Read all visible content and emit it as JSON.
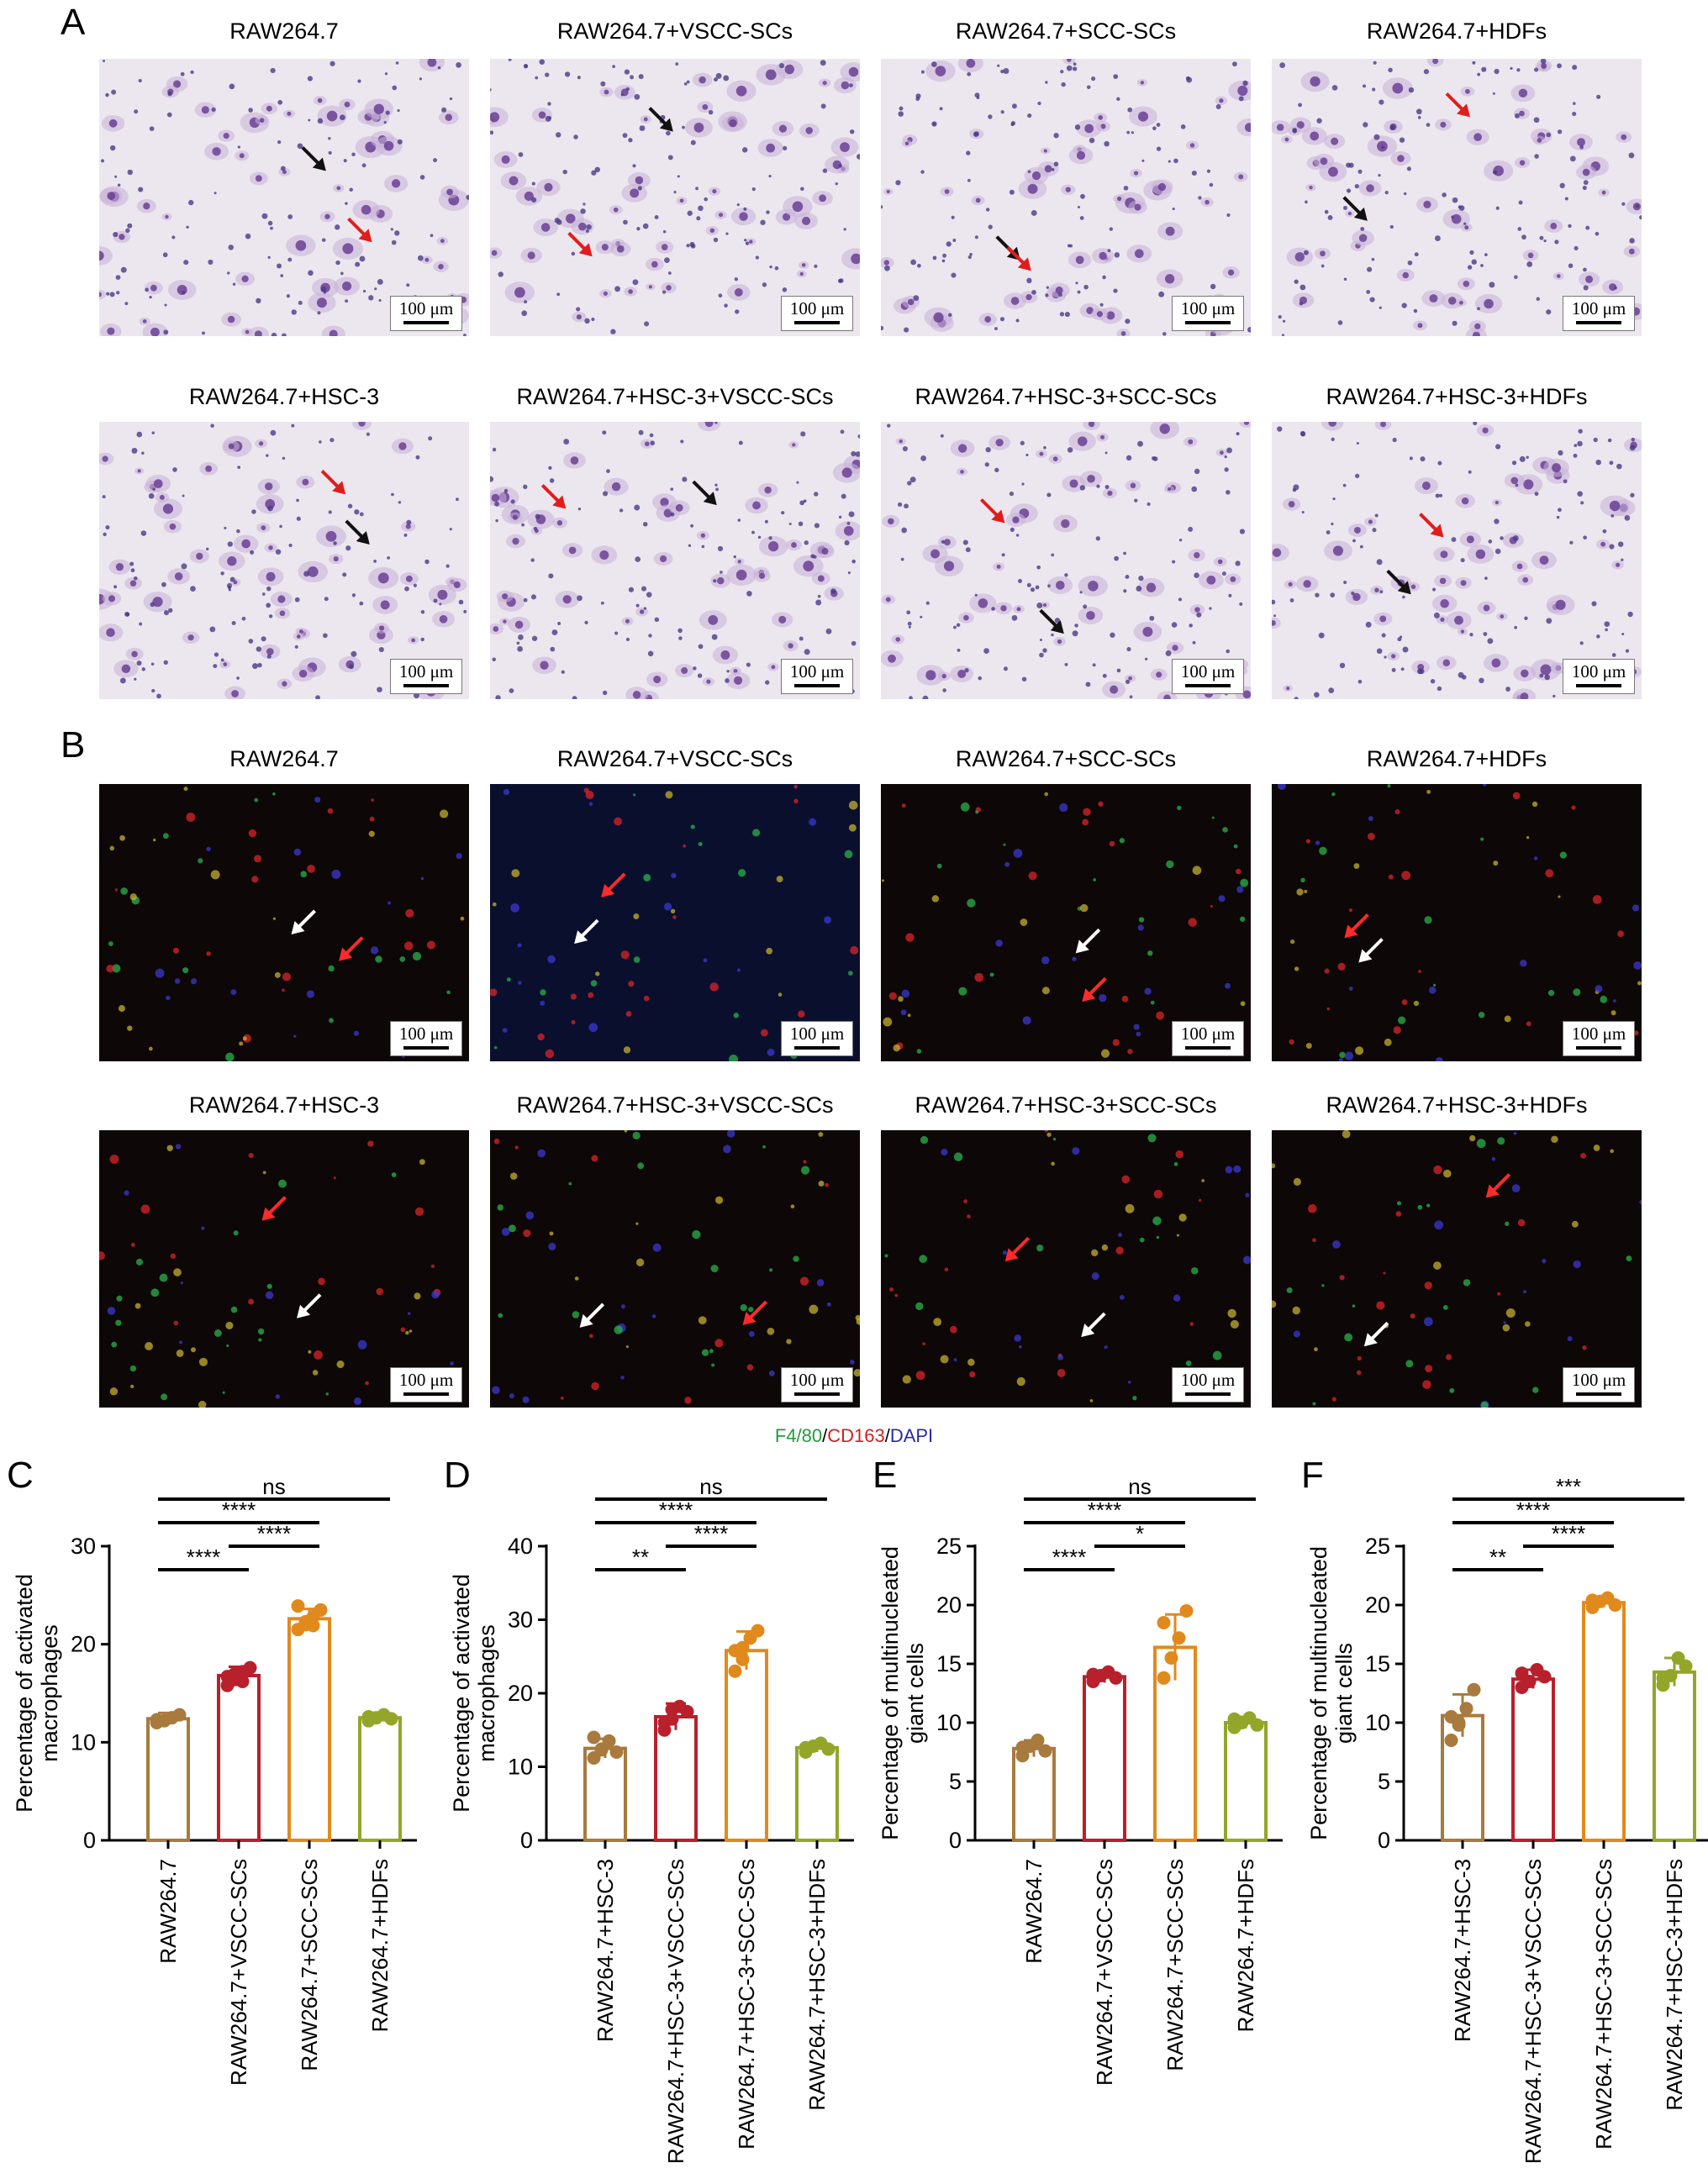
{
  "figure": {
    "panels": {
      "A": {
        "letter": "A",
        "captions": [
          "RAW264.7",
          "RAW264.7+VSCC-SCs",
          "RAW264.7+SCC-SCs",
          "RAW264.7+HDFs",
          "RAW264.7+HSC-3",
          "RAW264.7+HSC-3+VSCC-SCs",
          "RAW264.7+HSC-3+SCC-SCs",
          "RAW264.7+HSC-3+HDFs"
        ],
        "scalebar": "100 μm",
        "stain": "bright-field"
      },
      "B": {
        "letter": "B",
        "captions": [
          "RAW264.7",
          "RAW264.7+VSCC-SCs",
          "RAW264.7+SCC-SCs",
          "RAW264.7+HDFs",
          "RAW264.7+HSC-3",
          "RAW264.7+HSC-3+VSCC-SCs",
          "RAW264.7+HSC-3+SCC-SCs",
          "RAW264.7+HSC-3+HDFs"
        ],
        "scalebar": "100 μm",
        "stain": "fluorescence",
        "legend": {
          "parts": [
            {
              "text": "F4/80",
              "color": "#1e9e3c"
            },
            {
              "text": "/",
              "color": "#000000"
            },
            {
              "text": "CD163",
              "color": "#d21f1f"
            },
            {
              "text": "/",
              "color": "#000000"
            },
            {
              "text": "DAPI",
              "color": "#2a2aa8"
            }
          ]
        }
      }
    },
    "colors": {
      "brown": "#a87a3e",
      "red": "#b8202c",
      "orange": "#e08a1e",
      "olive": "#94a62a"
    }
  },
  "chart_data": [
    {
      "panel": "C",
      "type": "bar",
      "ylabel": [
        "Percentage of activated",
        "macrophages"
      ],
      "ylim": [
        0,
        30
      ],
      "yticks": [
        0,
        10,
        20,
        30
      ],
      "categories": [
        "RAW264.7",
        "RAW264.7+VSCC-SCs",
        "RAW264.7+SCC-SCs",
        "RAW264.7+HDFs"
      ],
      "values": [
        12.4,
        16.8,
        22.6,
        12.5
      ],
      "errors": [
        0.6,
        0.9,
        1.0,
        0.4
      ],
      "points": [
        [
          12.0,
          12.2,
          12.5,
          12.8,
          12.3
        ],
        [
          15.8,
          16.4,
          17.2,
          17.6,
          16.7,
          17.0,
          16.2
        ],
        [
          21.5,
          22.0,
          22.8,
          23.5,
          23.9,
          22.3,
          21.9
        ],
        [
          12.2,
          12.5,
          12.8,
          12.4,
          12.6
        ]
      ],
      "colors": [
        "brown",
        "red",
        "orange",
        "olive"
      ],
      "significance": [
        {
          "from": 0,
          "to": 1,
          "label": "****",
          "level": 0
        },
        {
          "from": 1,
          "to": 2,
          "label": "****",
          "level": 1
        },
        {
          "from": 0,
          "to": 2,
          "label": "****",
          "level": 2
        },
        {
          "from": 0,
          "to": 3,
          "label": "ns",
          "level": 3
        }
      ]
    },
    {
      "panel": "D",
      "type": "bar",
      "ylabel": [
        "Percentage of activated",
        "macrophages"
      ],
      "ylim": [
        0,
        40
      ],
      "yticks": [
        0,
        10,
        20,
        30,
        40
      ],
      "categories": [
        "RAW264.7+HSC-3",
        "RAW264.7+HSC-3+VSCC-SCs",
        "RAW264.7+HSC-3+SCC-SCs",
        "RAW264.7+HSC-3+HDFs"
      ],
      "values": [
        12.5,
        16.8,
        25.8,
        12.6
      ],
      "errors": [
        1.3,
        1.8,
        2.6,
        0.6
      ],
      "points": [
        [
          11.2,
          12.3,
          13.5,
          12.0,
          14.0,
          12.4
        ],
        [
          15.0,
          16.5,
          18.2,
          17.5,
          16.0,
          17.8
        ],
        [
          23.0,
          24.6,
          27.5,
          28.5,
          25.8,
          26.2
        ],
        [
          12.0,
          12.8,
          13.2,
          12.4,
          12.6
        ]
      ],
      "colors": [
        "brown",
        "red",
        "orange",
        "olive"
      ],
      "significance": [
        {
          "from": 0,
          "to": 1,
          "label": "**",
          "level": 0
        },
        {
          "from": 1,
          "to": 2,
          "label": "****",
          "level": 1
        },
        {
          "from": 0,
          "to": 2,
          "label": "****",
          "level": 2
        },
        {
          "from": 0,
          "to": 3,
          "label": "ns",
          "level": 3
        }
      ]
    },
    {
      "panel": "E",
      "type": "bar",
      "ylabel": [
        "Percentage of multinucleated",
        "giant cells"
      ],
      "ylim": [
        0,
        25
      ],
      "yticks": [
        0,
        5,
        10,
        15,
        20,
        25
      ],
      "categories": [
        "RAW264.7",
        "RAW264.7+VSCC-SCs",
        "RAW264.7+SCC-SCs",
        "RAW264.7+HDFs"
      ],
      "values": [
        7.8,
        13.9,
        16.4,
        10.0
      ],
      "errors": [
        0.7,
        0.5,
        2.8,
        0.5
      ],
      "points": [
        [
          7.2,
          8.0,
          8.5,
          7.6,
          7.9
        ],
        [
          13.5,
          14.0,
          14.3,
          13.8,
          14.1
        ],
        [
          13.8,
          15.5,
          17.2,
          19.5,
          18.5
        ],
        [
          9.6,
          10.0,
          10.4,
          9.8,
          10.3
        ]
      ],
      "colors": [
        "brown",
        "red",
        "orange",
        "olive"
      ],
      "significance": [
        {
          "from": 0,
          "to": 1,
          "label": "****",
          "level": 0
        },
        {
          "from": 1,
          "to": 2,
          "label": "*",
          "level": 1
        },
        {
          "from": 0,
          "to": 2,
          "label": "****",
          "level": 2
        },
        {
          "from": 0,
          "to": 3,
          "label": "ns",
          "level": 3
        }
      ]
    },
    {
      "panel": "F",
      "type": "bar",
      "ylabel": [
        "Percentage of multinucleated",
        "giant cells"
      ],
      "ylim": [
        0,
        25
      ],
      "yticks": [
        0,
        5,
        10,
        15,
        20,
        25
      ],
      "categories": [
        "RAW264.7+HSC-3",
        "RAW264.7+HSC-3+VSCC-SCs",
        "RAW264.7+HSC-3+SCC-SCs",
        "RAW264.7+HSC-3+HDFs"
      ],
      "values": [
        10.6,
        13.7,
        20.2,
        14.3
      ],
      "errors": [
        1.8,
        0.8,
        0.4,
        1.2
      ],
      "points": [
        [
          8.5,
          10.0,
          11.2,
          12.8,
          10.5,
          9.8
        ],
        [
          13.0,
          13.5,
          14.5,
          13.9,
          14.2
        ],
        [
          19.8,
          20.3,
          20.6,
          20.0,
          20.4
        ],
        [
          13.2,
          14.0,
          15.5,
          14.8,
          13.8
        ]
      ],
      "colors": [
        "brown",
        "red",
        "orange",
        "olive"
      ],
      "significance": [
        {
          "from": 0,
          "to": 1,
          "label": "**",
          "level": 0
        },
        {
          "from": 1,
          "to": 2,
          "label": "****",
          "level": 1
        },
        {
          "from": 0,
          "to": 2,
          "label": "****",
          "level": 2
        },
        {
          "from": 0,
          "to": 3,
          "label": "***",
          "level": 3
        }
      ]
    }
  ]
}
